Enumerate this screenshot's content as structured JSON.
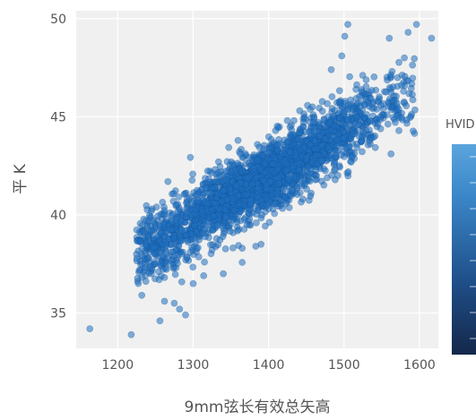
{
  "chart_data": {
    "type": "scatter",
    "xlabel": "9mm弦长有效总矢高",
    "ylabel": "平 K",
    "xlim": [
      1145,
      1625
    ],
    "ylim": [
      33.2,
      50.4
    ],
    "x_ticks": [
      "1200",
      "1300",
      "1400",
      "1500",
      "1600"
    ],
    "y_ticks": [
      "35",
      "40",
      "45",
      "50"
    ],
    "grid": true,
    "point_color": "#1f6fbf",
    "background_color": "#f0f0f0",
    "colorbar": {
      "title": "HVID",
      "colors": [
        "#14284a",
        "#1f4f8a",
        "#3a86c8",
        "#5aa5dd"
      ]
    },
    "trend": {
      "slope": 0.0225,
      "intercept": 10.5
    },
    "outliers": [
      [
        1163,
        34.2
      ],
      [
        1218,
        33.9
      ],
      [
        1256,
        34.6
      ],
      [
        1262,
        35.6
      ],
      [
        1275,
        35.5
      ],
      [
        1282,
        35.2
      ],
      [
        1232,
        35.9
      ],
      [
        1296,
        38.1
      ],
      [
        1314,
        36.9
      ],
      [
        1340,
        37.0
      ],
      [
        1365,
        38.3
      ],
      [
        1383,
        38.4
      ],
      [
        1390,
        38.5
      ],
      [
        1422,
        40.9
      ],
      [
        1470,
        43.5
      ],
      [
        1479,
        45.0
      ],
      [
        1499,
        43.9
      ],
      [
        1511,
        43.0
      ],
      [
        1520,
        44.0
      ],
      [
        1536,
        43.9
      ],
      [
        1483,
        47.4
      ],
      [
        1497,
        48.1
      ],
      [
        1501,
        49.1
      ],
      [
        1505,
        49.7
      ],
      [
        1560,
        49.0
      ],
      [
        1585,
        49.3
      ],
      [
        1596,
        49.7
      ],
      [
        1616,
        49.0
      ],
      [
        1580,
        48.0
      ],
      [
        1225,
        38.0
      ],
      [
        1245,
        37.3
      ],
      [
        1270,
        37.5
      ],
      [
        1292,
        37.8
      ],
      [
        1300,
        36.5
      ],
      [
        1315,
        37.6
      ],
      [
        1255,
        36.7
      ],
      [
        1240,
        37.8
      ],
      [
        1290,
        34.9
      ]
    ]
  }
}
